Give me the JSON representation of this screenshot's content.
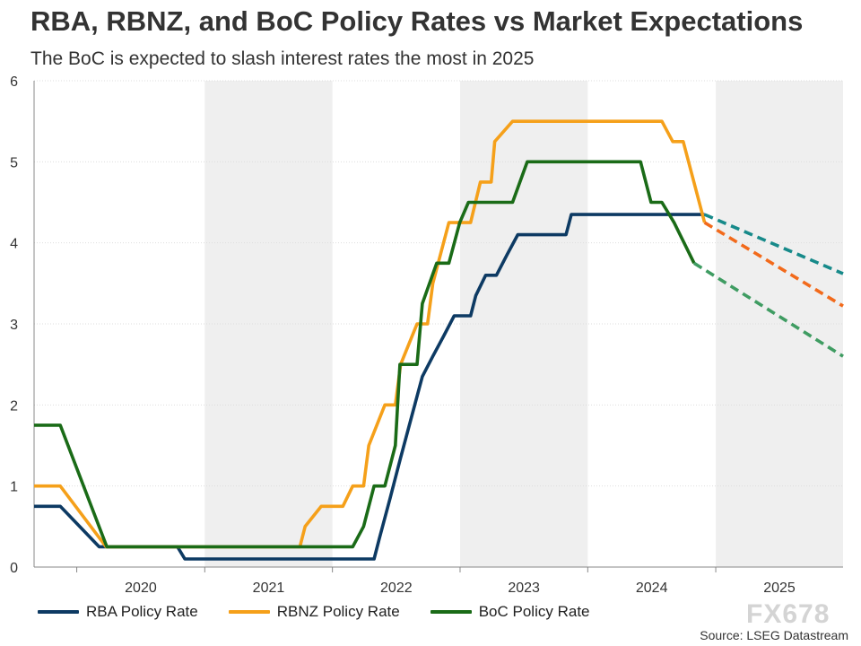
{
  "title": "RBA, RBNZ, and BoC Policy Rates vs Market Expectations",
  "subtitle": "The BoC is expected to slash interest rates the most in 2025",
  "source": "Source: LSEG Datastream",
  "watermark": "FX678",
  "colors": {
    "rba": "#0d3a63",
    "rbnz": "#f5a01a",
    "boc": "#1a6b17",
    "rba_forecast": "#178a8a",
    "rbnz_forecast": "#f26a1b",
    "boc_forecast": "#3f9c62",
    "shade": "#efefef",
    "grid": "#dddddd"
  },
  "legend": [
    {
      "label": "RBA Policy Rate",
      "color": "#0d3a63"
    },
    {
      "label": "RBNZ Policy Rate",
      "color": "#f5a01a"
    },
    {
      "label": "BoC Policy Rate",
      "color": "#1a6b17"
    }
  ],
  "chart_data": {
    "type": "line",
    "title": "RBA, RBNZ, and BoC Policy Rates vs Market Expectations",
    "subtitle": "The BoC is expected to slash interest rates the most in 2025",
    "xlabel": "",
    "ylabel": "",
    "xlim": [
      "2019-09-01",
      "2025-12-31"
    ],
    "ylim": [
      0,
      6
    ],
    "yticks": [
      0,
      1,
      2,
      3,
      4,
      5,
      6
    ],
    "xtick_labels": [
      "2020",
      "2021",
      "2022",
      "2023",
      "2024",
      "2025"
    ],
    "shaded_years": [
      "2021",
      "2023",
      "2025"
    ],
    "grid": "horizontal dotted",
    "legend_position": "bottom",
    "series": [
      {
        "name": "RBA Policy Rate",
        "style": "solid",
        "points": [
          [
            "2019-09-01",
            0.75
          ],
          [
            "2019-11-15",
            0.75
          ],
          [
            "2020-03-05",
            0.25
          ],
          [
            "2020-10-15",
            0.25
          ],
          [
            "2020-11-05",
            0.1
          ],
          [
            "2022-04-30",
            0.1
          ],
          [
            "2022-05-15",
            0.35
          ],
          [
            "2022-06-15",
            0.85
          ],
          [
            "2022-07-15",
            1.35
          ],
          [
            "2022-08-15",
            1.85
          ],
          [
            "2022-09-15",
            2.35
          ],
          [
            "2022-10-15",
            2.6
          ],
          [
            "2022-11-15",
            2.85
          ],
          [
            "2022-12-15",
            3.1
          ],
          [
            "2023-01-31",
            3.1
          ],
          [
            "2023-02-15",
            3.35
          ],
          [
            "2023-03-15",
            3.6
          ],
          [
            "2023-04-15",
            3.6
          ],
          [
            "2023-05-15",
            3.85
          ],
          [
            "2023-06-15",
            4.1
          ],
          [
            "2023-10-31",
            4.1
          ],
          [
            "2023-11-15",
            4.35
          ],
          [
            "2024-11-30",
            4.35
          ]
        ]
      },
      {
        "name": "RBNZ Policy Rate",
        "style": "solid",
        "points": [
          [
            "2019-09-01",
            1.0
          ],
          [
            "2019-11-15",
            1.0
          ],
          [
            "2020-03-25",
            0.25
          ],
          [
            "2021-09-30",
            0.25
          ],
          [
            "2021-10-15",
            0.5
          ],
          [
            "2021-11-30",
            0.75
          ],
          [
            "2022-01-31",
            0.75
          ],
          [
            "2022-02-28",
            1.0
          ],
          [
            "2022-03-31",
            1.0
          ],
          [
            "2022-04-15",
            1.5
          ],
          [
            "2022-05-31",
            2.0
          ],
          [
            "2022-06-30",
            2.0
          ],
          [
            "2022-07-15",
            2.5
          ],
          [
            "2022-08-31",
            3.0
          ],
          [
            "2022-09-30",
            3.0
          ],
          [
            "2022-10-15",
            3.5
          ],
          [
            "2022-11-30",
            4.25
          ],
          [
            "2023-01-31",
            4.25
          ],
          [
            "2023-02-28",
            4.75
          ],
          [
            "2023-03-31",
            4.75
          ],
          [
            "2023-04-10",
            5.25
          ],
          [
            "2023-05-31",
            5.5
          ],
          [
            "2024-07-31",
            5.5
          ],
          [
            "2024-08-31",
            5.25
          ],
          [
            "2024-09-30",
            5.25
          ],
          [
            "2024-11-30",
            4.25
          ]
        ]
      },
      {
        "name": "BoC Policy Rate",
        "style": "solid",
        "points": [
          [
            "2019-09-01",
            1.75
          ],
          [
            "2019-11-15",
            1.75
          ],
          [
            "2020-03-27",
            0.25
          ],
          [
            "2022-02-28",
            0.25
          ],
          [
            "2022-03-31",
            0.5
          ],
          [
            "2022-04-30",
            1.0
          ],
          [
            "2022-05-31",
            1.0
          ],
          [
            "2022-06-30",
            1.5
          ],
          [
            "2022-07-13",
            2.5
          ],
          [
            "2022-08-31",
            2.5
          ],
          [
            "2022-09-15",
            3.25
          ],
          [
            "2022-10-26",
            3.75
          ],
          [
            "2022-11-30",
            3.75
          ],
          [
            "2022-12-31",
            4.25
          ],
          [
            "2023-01-25",
            4.5
          ],
          [
            "2023-05-31",
            4.5
          ],
          [
            "2023-07-12",
            5.0
          ],
          [
            "2024-05-31",
            5.0
          ],
          [
            "2024-06-30",
            4.5
          ],
          [
            "2024-07-31",
            4.5
          ],
          [
            "2024-09-04",
            4.25
          ],
          [
            "2024-10-31",
            3.75
          ]
        ]
      },
      {
        "name": "",
        "style": "dashed",
        "color_key": "rba_forecast",
        "points": [
          [
            "2024-11-30",
            4.35
          ],
          [
            "2025-12-31",
            3.62
          ]
        ]
      },
      {
        "name": "",
        "style": "dashed",
        "color_key": "rbnz_forecast",
        "points": [
          [
            "2024-11-30",
            4.25
          ],
          [
            "2025-12-31",
            3.22
          ]
        ]
      },
      {
        "name": "",
        "style": "dashed",
        "color_key": "boc_forecast",
        "points": [
          [
            "2024-10-31",
            3.75
          ],
          [
            "2025-12-31",
            2.6
          ]
        ]
      }
    ]
  }
}
